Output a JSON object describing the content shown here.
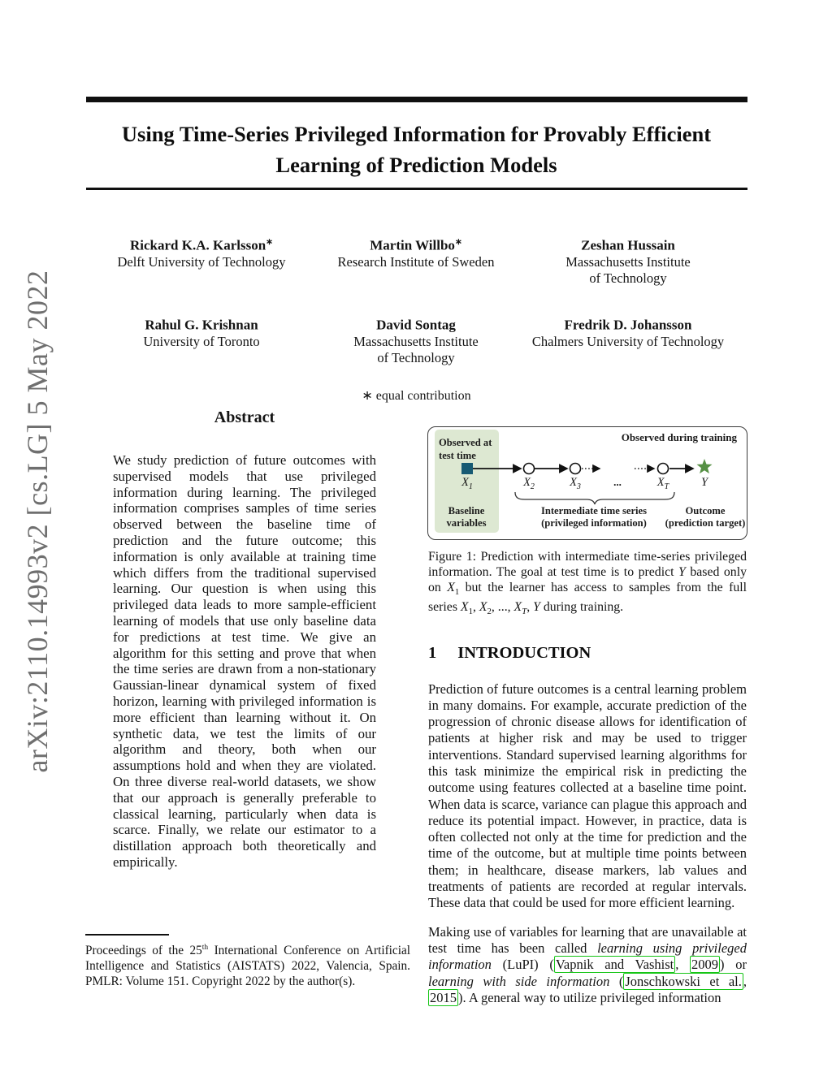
{
  "watermark": {
    "text": "arXiv:2110.14993v2 [cs.LG]  5 May 2022"
  },
  "header": {
    "title_lines": [
      "Using Time-Series Privileged Information for Provably Efficient",
      "Learning of Prediction Models"
    ]
  },
  "authors": [
    {
      "name": "Rickard K.A. Karlsson",
      "mark": "∗",
      "affiliation_lines": [
        "Delft University of Technology"
      ]
    },
    {
      "name": "Martin Willbo",
      "mark": "∗",
      "affiliation_lines": [
        "Research Institute of Sweden"
      ]
    },
    {
      "name": "Zeshan Hussain",
      "mark": "",
      "affiliation_lines": [
        "Massachusetts Institute",
        "of Technology"
      ]
    },
    {
      "name": "Rahul G. Krishnan",
      "mark": "",
      "affiliation_lines": [
        "University of Toronto"
      ]
    },
    {
      "name": "David Sontag",
      "mark": "",
      "affiliation_lines": [
        "Massachusetts Institute",
        "of Technology"
      ]
    },
    {
      "name": "Fredrik D. Johansson",
      "mark": "",
      "affiliation_lines": [
        "Chalmers University of Technology"
      ]
    }
  ],
  "contribution_note": "∗ equal contribution",
  "abstract": {
    "heading": "Abstract",
    "body": "We study prediction of future outcomes with supervised models that use privileged information during learning. The privileged information comprises samples of time series observed between the baseline time of prediction and the future outcome; this information is only available at training time which differs from the traditional supervised learning. Our question is when using this privileged data leads to more sample-efficient learning of models that use only baseline data for predictions at test time. We give an algorithm for this setting and prove that when the time series are drawn from a non-stationary Gaussian-linear dynamical system of fixed horizon, learning with privileged information is more efficient than learning without it. On synthetic data, we test the limits of our algorithm and theory, both when our assumptions hold and when they are violated. On three diverse real-world datasets, we show that our approach is generally preferable to classical learning, particularly when data is scarce. Finally, we relate our estimator to a distillation approach both theoretically and empirically."
  },
  "figure": {
    "panel_title_lines": [
      "Observed at",
      "test time"
    ],
    "training_label": "Observed during training",
    "nodes": [
      {
        "base": "X",
        "sub": "1"
      },
      {
        "base": "X",
        "sub": "2"
      },
      {
        "base": "X",
        "sub": "3"
      },
      {
        "base": "X",
        "sub": "T"
      },
      {
        "base": "Y",
        "sub": ""
      }
    ],
    "dots": "...",
    "baseline_lines": [
      "Baseline",
      "variables"
    ],
    "intermediate_lines": [
      "Intermediate time series",
      "(privileged information)"
    ],
    "outcome_lines": [
      "Outcome",
      "(prediction target)"
    ]
  },
  "figure_caption_segments": [
    {
      "t": "Figure 1: Prediction with intermediate time-series privileged information. The goal at test time is to predict "
    },
    {
      "t": "Y",
      "i": true
    },
    {
      "t": " based only on "
    },
    {
      "t": "X",
      "i": true
    },
    {
      "t": "1",
      "sub": true
    },
    {
      "t": " but the learner has access to samples from the full series "
    },
    {
      "t": "X",
      "i": true
    },
    {
      "t": "1",
      "sub": true
    },
    {
      "t": ", "
    },
    {
      "t": "X",
      "i": true
    },
    {
      "t": "2",
      "sub": true
    },
    {
      "t": ", ..., "
    },
    {
      "t": "X",
      "i": true
    },
    {
      "t": "T",
      "sub": true,
      "i2": true
    },
    {
      "t": ", "
    },
    {
      "t": "Y",
      "i": true
    },
    {
      "t": " during training."
    }
  ],
  "introduction": {
    "number": "1",
    "heading": "INTRODUCTION",
    "p1": "Prediction of future outcomes is a central learning problem in many domains. For example, accurate prediction of the progression of chronic disease allows for identification of patients at higher risk and may be used to trigger interventions. Standard supervised learning algorithms for this task minimize the empirical risk in predicting the outcome using features collected at a baseline time point. When data is scarce, variance can plague this approach and reduce its potential impact. However, in practice, data is often collected not only at the time for prediction and the time of the outcome, but at multiple time points between them; in healthcare, disease markers, lab values and treatments of patients are recorded at regular intervals. These data that could be used for more efficient learning.",
    "p2_segments": [
      {
        "t": "Making use of variables for learning that are unavailable at test time has been called "
      },
      {
        "t": "learning using privileged information",
        "i": true
      },
      {
        "t": " (LuPI) ("
      },
      {
        "t": "Vapnik and Vashist",
        "box": true
      },
      {
        "t": ", "
      },
      {
        "t": "2009",
        "box": true
      },
      {
        "t": ") or "
      },
      {
        "t": "learning with side information",
        "i": true
      },
      {
        "t": " ("
      },
      {
        "t": "Jonschkowski et al.",
        "box": true
      },
      {
        "t": ", "
      },
      {
        "t": "2015",
        "box": true
      },
      {
        "t": "). A general way to utilize privileged information"
      }
    ]
  },
  "footnote_segments": [
    {
      "t": "Proceedings of the 25"
    },
    {
      "t": "th",
      "sup": true
    },
    {
      "t": " International Conference on Artificial Intelligence and Statistics (AISTATS) 2022, Valencia, Spain. PMLR: Volume 151. Copyright 2022 by the author(s)."
    }
  ],
  "colors": {
    "panel_green": "#dde8d2",
    "square_teal": "#175a73",
    "star_green": "#569044",
    "cite_green": "#15c515",
    "watermark_gray": "#6f6f6f"
  }
}
